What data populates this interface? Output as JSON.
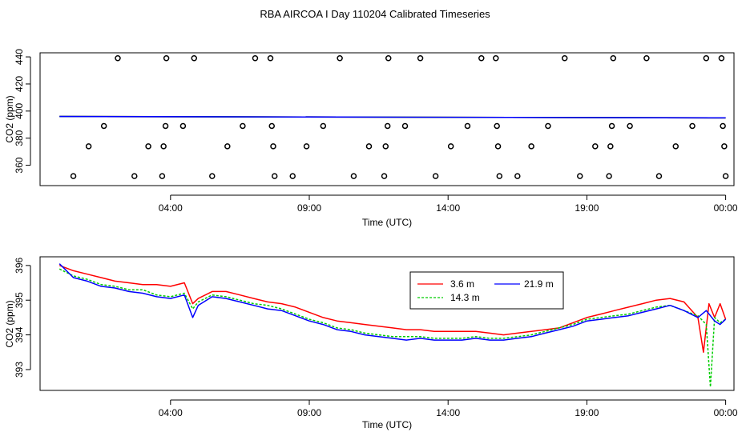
{
  "title": "RBA AIRCOA I  Day 110204  Calibrated Timeseries",
  "chart_data": [
    {
      "type": "scatter",
      "xlabel": "Time (UTC)",
      "ylabel": "CO2 (ppm)",
      "x_unit": "hours UTC",
      "xlim": [
        -0.7,
        24.3
      ],
      "ylim": [
        345,
        443
      ],
      "xticks": [
        {
          "value": 4,
          "label": "04:00"
        },
        {
          "value": 9,
          "label": "09:00"
        },
        {
          "value": 14,
          "label": "14:00"
        },
        {
          "value": 19,
          "label": "19:00"
        },
        {
          "value": 24,
          "label": "00:00"
        }
      ],
      "yticks": [
        360,
        380,
        400,
        420,
        440
      ],
      "points": [
        [
          0.5,
          352
        ],
        [
          1.05,
          374
        ],
        [
          1.6,
          389
        ],
        [
          2.1,
          439
        ],
        [
          2.7,
          352
        ],
        [
          3.2,
          374
        ],
        [
          3.7,
          352
        ],
        [
          3.75,
          374
        ],
        [
          3.82,
          389
        ],
        [
          3.85,
          439
        ],
        [
          4.45,
          389
        ],
        [
          4.85,
          439
        ],
        [
          5.5,
          352
        ],
        [
          6.05,
          374
        ],
        [
          6.6,
          389
        ],
        [
          7.05,
          439
        ],
        [
          7.6,
          439
        ],
        [
          7.65,
          389
        ],
        [
          7.7,
          374
        ],
        [
          7.75,
          352
        ],
        [
          8.4,
          352
        ],
        [
          8.9,
          374
        ],
        [
          9.5,
          389
        ],
        [
          10.1,
          439
        ],
        [
          10.6,
          352
        ],
        [
          11.15,
          374
        ],
        [
          11.7,
          352
        ],
        [
          11.75,
          374
        ],
        [
          11.82,
          389
        ],
        [
          11.85,
          439
        ],
        [
          12.45,
          389
        ],
        [
          13.0,
          439
        ],
        [
          13.55,
          352
        ],
        [
          14.1,
          374
        ],
        [
          14.7,
          389
        ],
        [
          15.2,
          439
        ],
        [
          15.72,
          439
        ],
        [
          15.76,
          389
        ],
        [
          15.8,
          374
        ],
        [
          15.85,
          352
        ],
        [
          16.5,
          352
        ],
        [
          17.0,
          374
        ],
        [
          17.6,
          389
        ],
        [
          18.2,
          439
        ],
        [
          18.75,
          352
        ],
        [
          19.3,
          374
        ],
        [
          19.8,
          352
        ],
        [
          19.85,
          374
        ],
        [
          19.9,
          389
        ],
        [
          19.95,
          439
        ],
        [
          20.55,
          389
        ],
        [
          21.15,
          439
        ],
        [
          21.6,
          352
        ],
        [
          22.2,
          374
        ],
        [
          22.8,
          389
        ],
        [
          23.3,
          439
        ],
        [
          23.85,
          439
        ],
        [
          23.9,
          389
        ],
        [
          23.95,
          374
        ],
        [
          24.0,
          352
        ]
      ],
      "flat_lines": [
        {
          "name": "3.6 m",
          "color": "#ff0000",
          "x": [
            0,
            24
          ],
          "values": [
            396.0,
            395.0
          ]
        },
        {
          "name": "14.3 m",
          "color": "#00cd00",
          "x": [
            0,
            24
          ],
          "values": [
            396.0,
            395.0
          ]
        },
        {
          "name": "21.9 m",
          "color": "#0000ff",
          "x": [
            0,
            24
          ],
          "values": [
            396.0,
            395.0
          ]
        }
      ]
    },
    {
      "type": "line",
      "xlabel": "Time (UTC)",
      "ylabel": "CO2 (ppm)",
      "x_unit": "hours UTC",
      "xlim": [
        -0.7,
        24.3
      ],
      "ylim": [
        392.4,
        396.25
      ],
      "xticks": [
        {
          "value": 4,
          "label": "04:00"
        },
        {
          "value": 9,
          "label": "09:00"
        },
        {
          "value": 14,
          "label": "14:00"
        },
        {
          "value": 19,
          "label": "19:00"
        },
        {
          "value": 24,
          "label": "00:00"
        }
      ],
      "yticks": [
        393,
        394,
        395,
        396
      ],
      "legend_position": "top-center",
      "series": [
        {
          "name": "3.6 m",
          "color": "#ff0000",
          "dash": "",
          "x": [
            0,
            0.5,
            1,
            1.5,
            2,
            2.5,
            3,
            3.5,
            4,
            4.5,
            4.8,
            5,
            5.5,
            6,
            6.5,
            7,
            7.5,
            8,
            8.5,
            9,
            9.5,
            10,
            10.5,
            11,
            11.5,
            12,
            12.5,
            13,
            13.5,
            14,
            14.5,
            15,
            15.5,
            16,
            16.5,
            17,
            17.5,
            18,
            18.5,
            19,
            19.5,
            20,
            20.5,
            21,
            21.5,
            22,
            22.5,
            23,
            23.2,
            23.4,
            23.6,
            23.8,
            24
          ],
          "values": [
            396.0,
            395.85,
            395.75,
            395.65,
            395.55,
            395.5,
            395.45,
            395.45,
            395.4,
            395.5,
            394.9,
            395.05,
            395.25,
            395.25,
            395.15,
            395.05,
            394.95,
            394.9,
            394.8,
            394.65,
            394.5,
            394.4,
            394.35,
            394.3,
            394.25,
            394.2,
            394.15,
            394.15,
            394.1,
            394.1,
            394.1,
            394.1,
            394.05,
            394.0,
            394.05,
            394.1,
            394.15,
            394.2,
            394.35,
            394.5,
            394.6,
            394.7,
            394.8,
            394.9,
            395.0,
            395.05,
            394.95,
            394.5,
            393.5,
            394.9,
            394.5,
            394.9,
            394.45
          ]
        },
        {
          "name": "14.3 m",
          "color": "#00cd00",
          "dash": "3,2",
          "x": [
            0,
            0.5,
            1,
            1.5,
            2,
            2.5,
            3,
            3.5,
            4,
            4.5,
            4.8,
            5,
            5.5,
            6,
            6.5,
            7,
            7.5,
            8,
            8.5,
            9,
            9.5,
            10,
            10.5,
            11,
            11.5,
            12,
            12.5,
            13,
            13.5,
            14,
            14.5,
            15,
            15.5,
            16,
            16.5,
            17,
            17.5,
            18,
            18.5,
            19,
            19.5,
            20,
            20.5,
            21,
            21.5,
            22,
            22.5,
            23,
            23.3,
            23.45,
            23.6,
            23.8,
            24
          ],
          "values": [
            395.9,
            395.7,
            395.6,
            395.45,
            395.4,
            395.3,
            395.3,
            395.15,
            395.1,
            395.2,
            394.75,
            394.95,
            395.15,
            395.1,
            395.0,
            394.9,
            394.85,
            394.75,
            394.6,
            394.45,
            394.35,
            394.2,
            394.15,
            394.05,
            394.0,
            393.95,
            393.95,
            393.95,
            393.9,
            393.9,
            393.9,
            393.95,
            393.9,
            393.9,
            393.95,
            394.0,
            394.1,
            394.2,
            394.3,
            394.45,
            394.5,
            394.55,
            394.6,
            394.7,
            394.8,
            394.85,
            394.7,
            394.55,
            394.3,
            392.5,
            394.5,
            394.35,
            394.45
          ]
        },
        {
          "name": "21.9 m",
          "color": "#0000ff",
          "dash": "",
          "x": [
            0,
            0.5,
            1,
            1.5,
            2,
            2.5,
            3,
            3.5,
            4,
            4.5,
            4.8,
            5,
            5.5,
            6,
            6.5,
            7,
            7.5,
            8,
            8.5,
            9,
            9.5,
            10,
            10.5,
            11,
            11.5,
            12,
            12.5,
            13,
            13.5,
            14,
            14.5,
            15,
            15.5,
            16,
            16.5,
            17,
            17.5,
            18,
            18.5,
            19,
            19.5,
            20,
            20.5,
            21,
            21.5,
            22,
            22.5,
            23,
            23.3,
            23.6,
            23.8,
            24
          ],
          "values": [
            396.05,
            395.65,
            395.55,
            395.4,
            395.35,
            395.25,
            395.2,
            395.1,
            395.05,
            395.15,
            394.5,
            394.85,
            395.1,
            395.05,
            394.95,
            394.85,
            394.75,
            394.7,
            394.55,
            394.4,
            394.3,
            394.15,
            394.1,
            394.0,
            393.95,
            393.9,
            393.85,
            393.9,
            393.85,
            393.85,
            393.85,
            393.9,
            393.85,
            393.85,
            393.9,
            393.95,
            394.05,
            394.15,
            394.25,
            394.4,
            394.45,
            394.5,
            394.55,
            394.65,
            394.75,
            394.85,
            394.7,
            394.5,
            394.7,
            394.4,
            394.3,
            394.45
          ]
        }
      ]
    }
  ]
}
